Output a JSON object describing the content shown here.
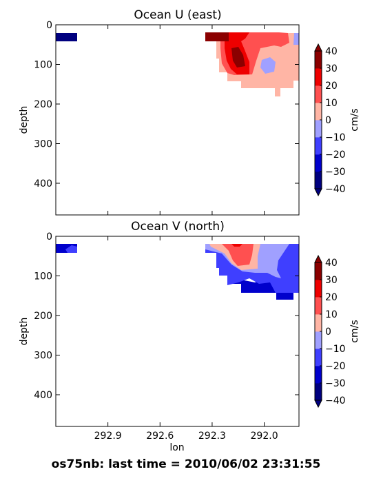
{
  "footer": "os75nb: last time = 2010/06/02 23:31:55",
  "colors": {
    "levels": [
      "#00007f",
      "#0000cc",
      "#3f3fff",
      "#a0a0ff",
      "#ffb5a5",
      "#ff5050",
      "#ee0000",
      "#8b0000"
    ],
    "under": "#00007f",
    "over": "#8b0000"
  },
  "chart_data": [
    {
      "type": "heatmap",
      "title": "Ocean U (east)",
      "xlabel": "",
      "ylabel": "depth",
      "x_ticks": [
        "292.9",
        "292.6",
        "292.3",
        "292.0"
      ],
      "x_tick_labels_shown": false,
      "xlim": [
        293.2,
        291.8
      ],
      "ylim": [
        480,
        0
      ],
      "y_ticks": [
        0,
        100,
        200,
        300,
        400
      ],
      "colorbar": {
        "label": "cm/s",
        "ticks": [
          40,
          30,
          20,
          10,
          0,
          -10,
          -20,
          -30,
          -40
        ],
        "extend": "both"
      },
      "patches": [
        {
          "lon": [
            293.2,
            293.08
          ],
          "depth": [
            20,
            40
          ],
          "value": -45
        },
        {
          "lon": [
            292.32,
            292.18
          ],
          "depth": [
            20,
            40
          ],
          "value": 35
        },
        {
          "lon": [
            292.2,
            291.85
          ],
          "depth": [
            20,
            140
          ],
          "value": 15
        },
        {
          "lon": [
            292.15,
            292.05
          ],
          "depth": [
            40,
            110
          ],
          "value": 25
        },
        {
          "lon": [
            292.0,
            291.9
          ],
          "depth": [
            60,
            120
          ],
          "value": 5
        },
        {
          "lon": [
            291.9,
            291.8
          ],
          "depth": [
            30,
            140
          ],
          "value": 5
        },
        {
          "lon": [
            291.95,
            291.88
          ],
          "depth": [
            140,
            160
          ],
          "value": 5
        }
      ]
    },
    {
      "type": "heatmap",
      "title": "Ocean V (north)",
      "xlabel": "lon",
      "ylabel": "depth",
      "x_ticks": [
        "292.9",
        "292.6",
        "292.3",
        "292.0"
      ],
      "x_tick_labels_shown": true,
      "xlim": [
        293.2,
        291.8
      ],
      "ylim": [
        480,
        0
      ],
      "y_ticks": [
        0,
        100,
        200,
        300,
        400
      ],
      "colorbar": {
        "label": "cm/s",
        "ticks": [
          40,
          30,
          20,
          10,
          0,
          -10,
          -20,
          -30,
          -40
        ],
        "extend": "both"
      },
      "patches": [
        {
          "lon": [
            293.2,
            293.08
          ],
          "depth": [
            20,
            40
          ],
          "value": -25
        },
        {
          "lon": [
            292.32,
            292.0
          ],
          "depth": [
            20,
            80
          ],
          "value": 15
        },
        {
          "lon": [
            292.15,
            291.95
          ],
          "depth": [
            20,
            60
          ],
          "value": 25
        },
        {
          "lon": [
            292.0,
            291.85
          ],
          "depth": [
            20,
            110
          ],
          "value": -5
        },
        {
          "lon": [
            292.2,
            291.8
          ],
          "depth": [
            60,
            140
          ],
          "value": -15
        },
        {
          "lon": [
            292.1,
            291.8
          ],
          "depth": [
            110,
            160
          ],
          "value": -25
        }
      ]
    }
  ]
}
